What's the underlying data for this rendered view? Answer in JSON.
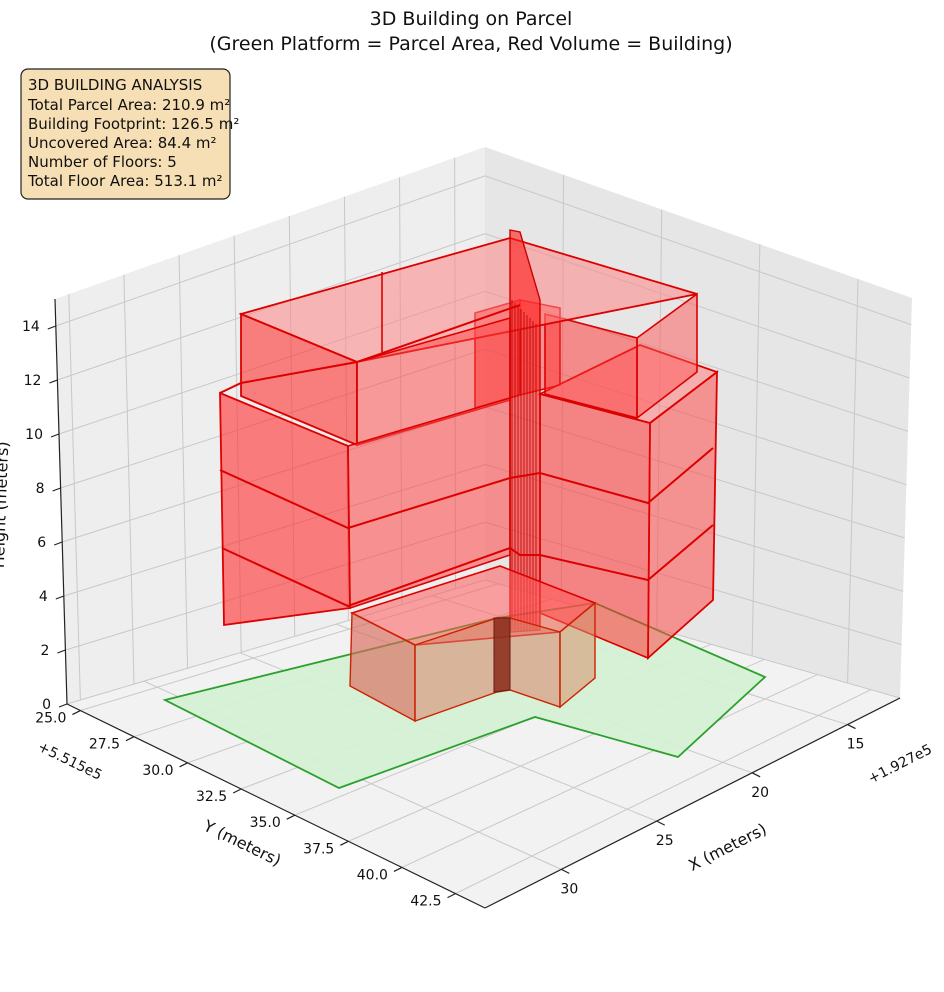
{
  "chart_data": {
    "type": "3d-polygons",
    "title_lines": [
      "3D Building on Parcel",
      "(Green Platform = Parcel Area, Red Volume = Building)"
    ],
    "axes": {
      "x": {
        "label": "X (meters)",
        "offset_text": "+1.927e5",
        "ticks": [
          "15",
          "20",
          "25",
          "30"
        ]
      },
      "y": {
        "label": "Y (meters)",
        "offset_text": "+5.515e5",
        "ticks": [
          "25.0",
          "27.5",
          "30.0",
          "32.5",
          "35.0",
          "37.5",
          "40.0",
          "42.5"
        ]
      },
      "z": {
        "label": "Height (meters)",
        "ticks": [
          "0",
          "2",
          "4",
          "6",
          "8",
          "10",
          "12",
          "14"
        ],
        "zlim": [
          0,
          15
        ]
      }
    },
    "grid": true,
    "series": [
      {
        "name": "Parcel Area",
        "kind": "platform",
        "height": 0,
        "color": "#2ca02c",
        "fill": "#d4f0d4"
      },
      {
        "name": "Building",
        "kind": "volume",
        "floors": 5,
        "color": "#dd0000",
        "fill": "#ff3333"
      }
    ],
    "info_box": {
      "heading": "3D BUILDING ANALYSIS",
      "lines": [
        "Total Parcel Area: 210.9 m²",
        "Building Footprint: 126.5 m²",
        "Uncovered Area: 84.4 m²",
        "Number of Floors: 5",
        "Total Floor Area: 513.1 m²"
      ]
    }
  }
}
